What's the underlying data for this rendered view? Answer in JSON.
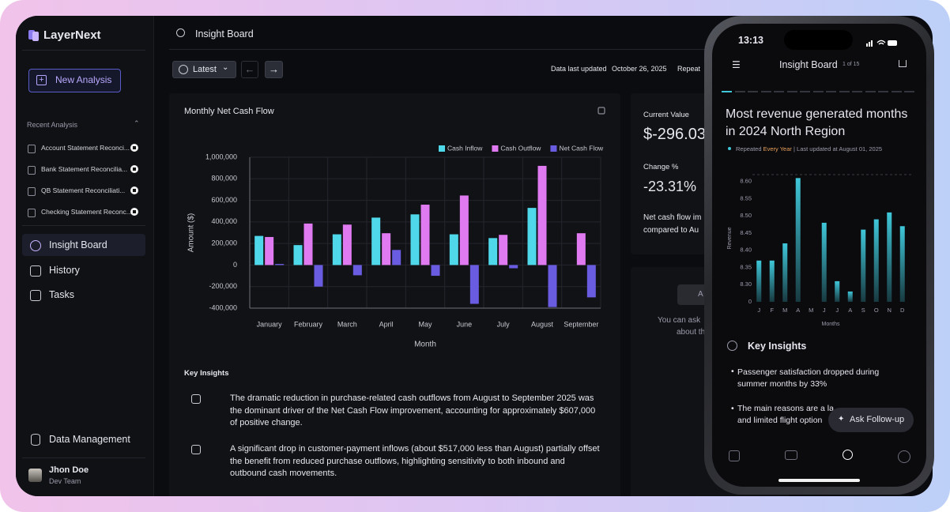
{
  "sidebar": {
    "brand": "LayerNext",
    "new_button": "New Analysis",
    "recent_title": "Recent Analysis",
    "recent": [
      "Account Statement Reconci...",
      "Bank Statement Reconcilia...",
      "QB Statement Reconciliati...",
      "Checking Statement Reconc..."
    ],
    "nav": [
      "Insight Board",
      "History",
      "Tasks"
    ],
    "data_management": "Data Management",
    "user": {
      "name": "Jhon Doe",
      "team": "Dev Team"
    }
  },
  "header": {
    "title": "Insight Board",
    "filter": "Latest",
    "updated_label": "Data last updated",
    "updated_date": "October 26, 2025",
    "repeat": "Repeat"
  },
  "chart_data": [
    {
      "type": "bar",
      "title": "Monthly Net Cash Flow",
      "x_label": "Month",
      "y_label": "Amount ($)",
      "categories": [
        "January",
        "February",
        "March",
        "April",
        "May",
        "June",
        "July",
        "August",
        "September"
      ],
      "series": [
        {
          "name": "Cash Inflow",
          "color": "#4fd8ea",
          "values": [
            270000,
            185000,
            285000,
            440000,
            470000,
            285000,
            250000,
            530000,
            null
          ]
        },
        {
          "name": "Cash Outflow",
          "color": "#e07af0",
          "values": [
            260000,
            385000,
            375000,
            295000,
            560000,
            645000,
            280000,
            920000,
            295000
          ]
        },
        {
          "name": "Net Cash Flow",
          "color": "#6a5ce0",
          "values": [
            10000,
            -200000,
            -95000,
            140000,
            -100000,
            -360000,
            -30000,
            -390000,
            -300000
          ]
        }
      ],
      "ylim": [
        -400000,
        1000000
      ],
      "yticks": [
        {
          "value": -400000,
          "label": "-400,000"
        },
        {
          "value": -200000,
          "label": "-200,000"
        },
        0,
        {
          "value": 200000,
          "label": "200,000"
        },
        {
          "value": 400000,
          "label": "400,000"
        },
        {
          "value": 600000,
          "label": "600,000"
        },
        {
          "value": 800000,
          "label": "800,000"
        },
        {
          "value": 1000000,
          "label": "1,000,000"
        }
      ],
      "grid": true,
      "legend": "top-right"
    },
    {
      "type": "bar",
      "title": "Most revenue generated months in 2024 North Region",
      "x_label": "Months",
      "y_label": "Revenue",
      "categories": [
        "J",
        "F",
        "M",
        "A",
        "M",
        "J",
        "J",
        "A",
        "S",
        "O",
        "N",
        "D"
      ],
      "color": "#3fc7d9",
      "values": [
        8.37,
        8.37,
        8.42,
        8.61,
        null,
        8.48,
        8.31,
        8.28,
        8.46,
        8.49,
        8.51,
        8.47
      ],
      "ylim": [
        8.25,
        8.62
      ],
      "yticks": [
        {
          "value": 8.3,
          "label": "8.30"
        },
        8.35,
        {
          "value": 8.4,
          "label": "8.40"
        },
        8.45,
        {
          "value": 8.5,
          "label": "8.50"
        },
        8.55,
        {
          "value": 8.6,
          "label": "8.60"
        }
      ],
      "y_floor_label": "0",
      "grid": false
    }
  ],
  "insights": {
    "title": "Key Insights",
    "items": [
      "The dramatic reduction in purchase-related cash outflows from August to September 2025 was the dominant driver of the Net Cash Flow improvement, accounting for approximately $607,000 of positive change.",
      "A significant drop in customer-payment inflows (about $517,000 less than August) partially offset the benefit from reduced purchase outflows, highlighting sensitivity to both inbound and outbound cash movements."
    ]
  },
  "summary": {
    "current_label": "Current Value",
    "current_value": "$-296.03",
    "change_label": "Change %",
    "change_value": "-23.31%",
    "note": [
      "Net cash flow im",
      "compared to Au"
    ],
    "ask_button": "A",
    "ask": [
      "You can ask",
      "about th"
    ]
  },
  "phone": {
    "time": "13:13",
    "title": "Insight Board",
    "page": "1 of 15",
    "repeated": "Repeated",
    "frequency": "Every Year",
    "last_updated": "| Last updated at August 01, 2025",
    "insights_title": "Key Insights",
    "bullets": [
      "Passenger satisfaction dropped during summer months by 33%",
      [
        "The main reasons are a la",
        "and limited flight option"
      ]
    ],
    "ask_button": "Ask Follow-up"
  }
}
